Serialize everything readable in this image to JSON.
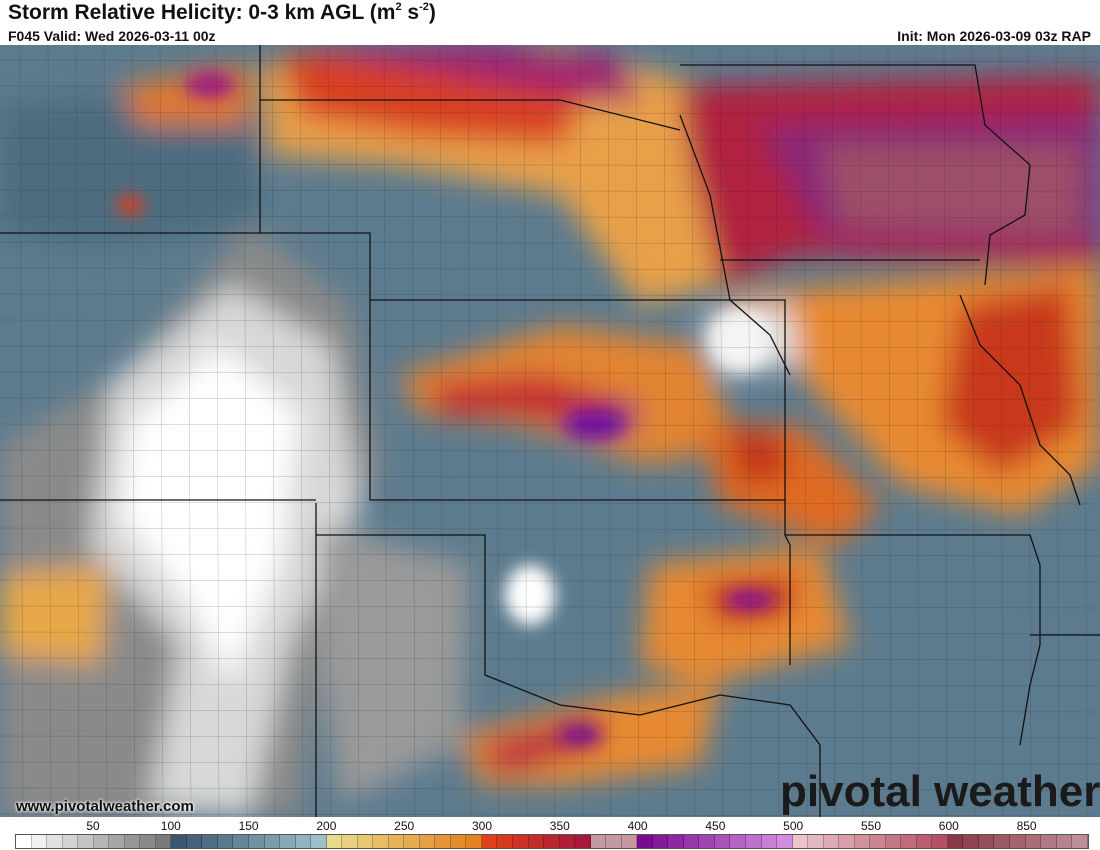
{
  "header": {
    "title_main": "Storm Relative Helicity: 0-3 km AGL (m",
    "title_sup1": "2",
    "title_mid": " s",
    "title_sup2": "-2",
    "title_end": ")",
    "valid": "F045 Valid: Wed 2026-03-11 00z",
    "init": "Init: Mon 2026-03-09 03z RAP"
  },
  "footer": {
    "website": "www.pivotalweather.com",
    "logo": "pivotal weather"
  },
  "colorbar": {
    "ticks": [
      "50",
      "100",
      "150",
      "200",
      "250",
      "300",
      "350",
      "400",
      "450",
      "500",
      "550",
      "600",
      "850"
    ],
    "stops": [
      {
        "from": 0,
        "color": "#ffffff"
      },
      {
        "from": 100,
        "color": "#6b6b6b"
      },
      {
        "from": 100,
        "color": "#3a5670"
      },
      {
        "from": 200,
        "color": "#a9cbd2"
      },
      {
        "from": 200,
        "color": "#e9db8c"
      },
      {
        "from": 300,
        "color": "#e27812"
      },
      {
        "from": 300,
        "color": "#e0401a"
      },
      {
        "from": 370,
        "color": "#a01040"
      },
      {
        "from": 400,
        "color": "#7a0a90"
      },
      {
        "from": 500,
        "color": "#dc9ce8"
      },
      {
        "from": 500,
        "color": "#ebc4cc"
      },
      {
        "from": 600,
        "color": "#ae4458"
      },
      {
        "from": 600,
        "color": "#8a3848"
      },
      {
        "from": 690,
        "color": "#c49aa0"
      }
    ]
  }
}
